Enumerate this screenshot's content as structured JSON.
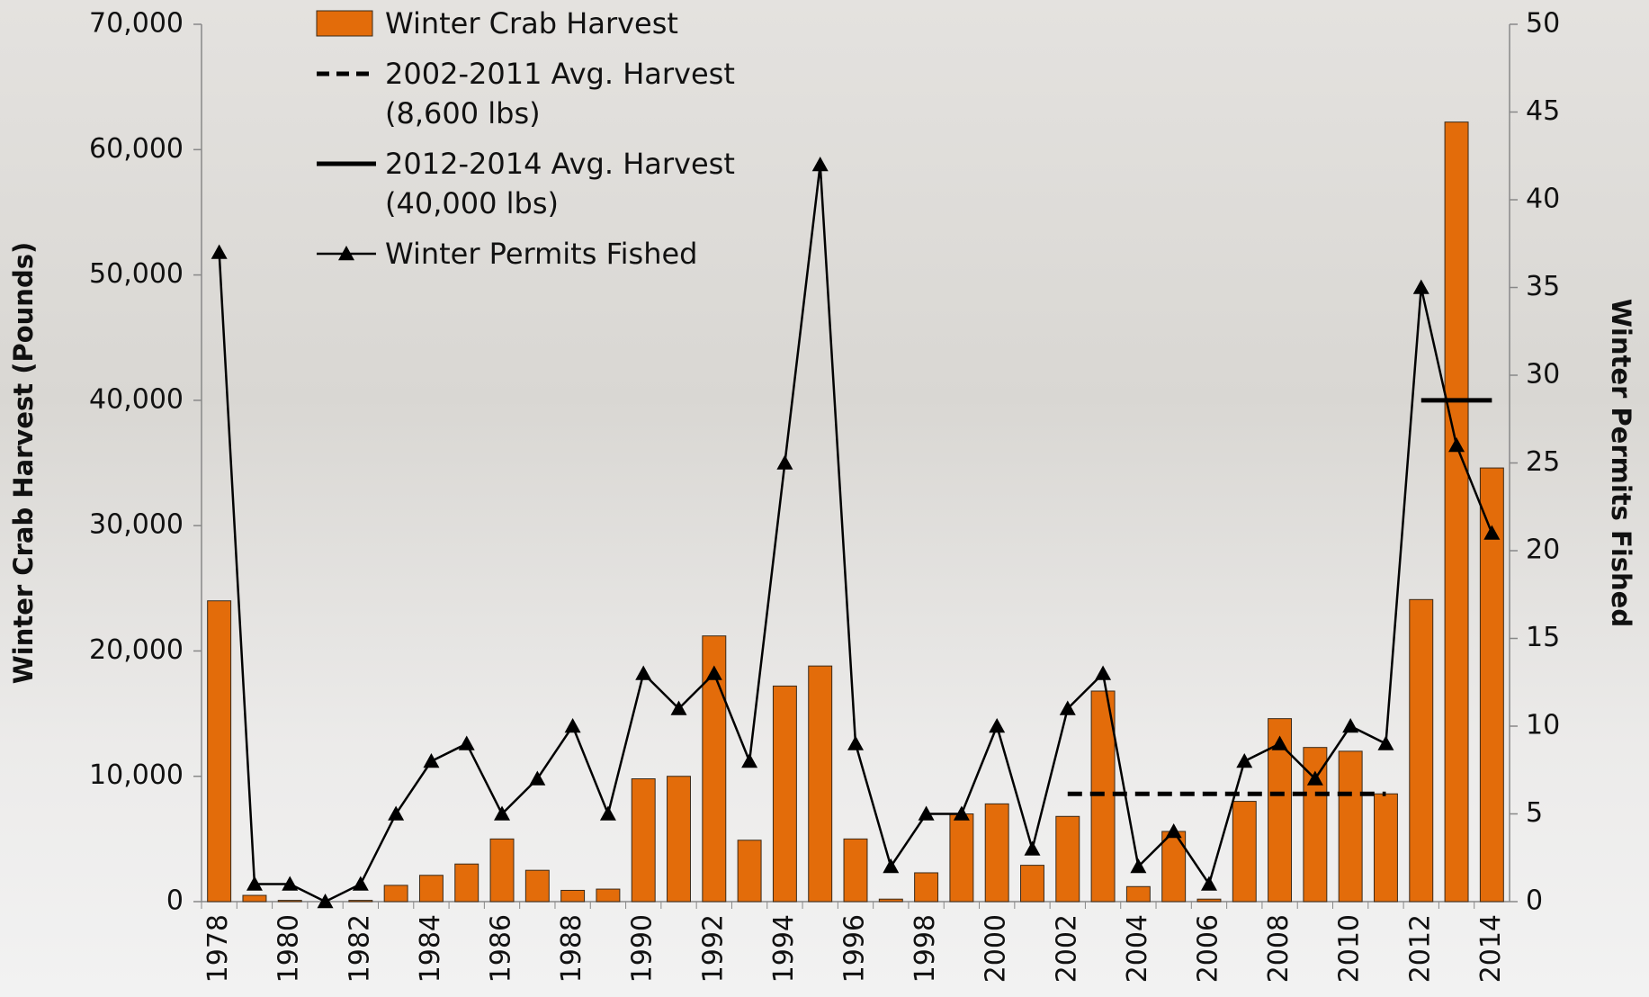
{
  "chart_data": {
    "type": "bar",
    "categories": [
      "1978",
      null,
      "1980",
      null,
      "1982",
      null,
      "1984",
      null,
      "1986",
      null,
      "1988",
      null,
      "1990",
      null,
      "1992",
      null,
      "1994",
      null,
      "1996",
      null,
      "1998",
      null,
      "2000",
      null,
      "2002",
      null,
      "2004",
      null,
      "2006",
      null,
      "2008",
      null,
      "2010",
      null,
      "2012",
      null,
      "2014"
    ],
    "series": [
      {
        "name": "Winter Crab Harvest",
        "type": "bar",
        "color": "#e36c0a",
        "values": [
          24000,
          500,
          100,
          0,
          100,
          1300,
          2100,
          3000,
          5000,
          2500,
          900,
          1000,
          9800,
          10000,
          21200,
          4900,
          17200,
          18800,
          5000,
          200,
          2300,
          7000,
          7800,
          2900,
          6800,
          16800,
          1200,
          5600,
          200,
          8000,
          14600,
          12300,
          12000,
          8600,
          24100,
          62200,
          34600
        ]
      },
      {
        "name": "2002-2011 Avg. Harvest (8,600 lbs)",
        "type": "line",
        "line_style": "dashed",
        "color": "#000000",
        "values": [
          null,
          null,
          null,
          null,
          null,
          null,
          null,
          null,
          null,
          null,
          null,
          null,
          null,
          null,
          null,
          null,
          null,
          null,
          null,
          null,
          null,
          null,
          null,
          null,
          8600,
          8600,
          8600,
          8600,
          8600,
          8600,
          8600,
          8600,
          8600,
          8600,
          null,
          null,
          null
        ]
      },
      {
        "name": "2012-2014 Avg. Harvest (40,000 lbs)",
        "type": "line",
        "line_style": "solid",
        "color": "#000000",
        "values": [
          null,
          null,
          null,
          null,
          null,
          null,
          null,
          null,
          null,
          null,
          null,
          null,
          null,
          null,
          null,
          null,
          null,
          null,
          null,
          null,
          null,
          null,
          null,
          null,
          null,
          null,
          null,
          null,
          null,
          null,
          null,
          null,
          null,
          null,
          40000,
          40000,
          40000
        ]
      },
      {
        "name": "Winter Permits Fished",
        "type": "line",
        "line_style": "solid",
        "marker": "triangle",
        "axis": "y2",
        "color": "#000000",
        "values": [
          37,
          1,
          1,
          0,
          1,
          5,
          8,
          9,
          5,
          7,
          10,
          5,
          13,
          11,
          13,
          8,
          25,
          42,
          9,
          2,
          5,
          5,
          10,
          3,
          11,
          13,
          2,
          4,
          1,
          8,
          9,
          7,
          10,
          9,
          35,
          26,
          21
        ]
      }
    ],
    "ylabel": "Winter Crab Harvest (Pounds)",
    "y2label": "Winter Permits Fished",
    "ylim": [
      0,
      70000
    ],
    "yticks": [
      0,
      {
        "value": 10000,
        "label": "10,000"
      },
      {
        "value": 20000,
        "label": "20,000"
      },
      {
        "value": 30000,
        "label": "30,000"
      },
      {
        "value": 40000,
        "label": "40,000"
      },
      {
        "value": 50000,
        "label": "50,000"
      },
      {
        "value": 60000,
        "label": "60,000"
      },
      {
        "value": 70000,
        "label": "70,000"
      }
    ],
    "y2lim": [
      0,
      50
    ],
    "y2ticks": [
      0,
      5,
      10,
      15,
      20,
      25,
      30,
      35,
      40,
      45,
      50
    ],
    "legend": "top-left"
  }
}
